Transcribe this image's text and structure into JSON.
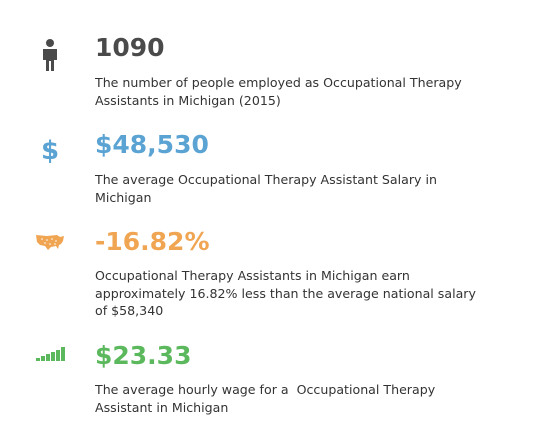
{
  "stats": [
    {
      "value": "1090",
      "color": "#4a4a4a",
      "description": [
        "The number of people employed as Occupational Therapy",
        "Assistants in Michigan (2015)"
      ]
    },
    {
      "value": "$48,530",
      "color": "#5aa3d3",
      "icon_label": "$",
      "description": [
        "The average Occupational Therapy Assistant Salary in",
        "Michigan"
      ]
    },
    {
      "value": "-16.82%",
      "color": "#f0a553",
      "description": [
        "Occupational Therapy Assistants in Michigan earn",
        "approximately 16.82% less than the average national salary",
        "of $58,340"
      ]
    },
    {
      "value": "$23.33",
      "color": "#5cb85c",
      "description": [
        "The average hourly wage for a  Occupational Therapy",
        "Assistant in Michigan"
      ]
    }
  ]
}
